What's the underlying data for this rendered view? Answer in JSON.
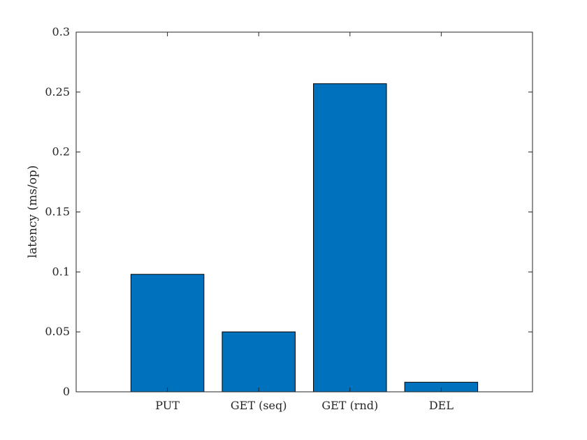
{
  "chart_data": {
    "type": "bar",
    "categories": [
      "PUT",
      "GET (seq)",
      "GET (rnd)",
      "DEL"
    ],
    "values": [
      0.098,
      0.05,
      0.257,
      0.008
    ],
    "xlabel": "",
    "ylabel": "latency (ms/op)",
    "ylim": [
      0,
      0.3
    ],
    "yticks": [
      0,
      0.05,
      0.1,
      0.15,
      0.2,
      0.25,
      0.3
    ],
    "ytick_labels": [
      "0",
      "0.05",
      "0.1",
      "0.15",
      "0.2",
      "0.25",
      "0.3"
    ],
    "xlim": [
      0,
      5
    ],
    "grid": false,
    "bar_color": "#0072BD",
    "bar_edge_color": "#000000",
    "axis_color": "#262626"
  }
}
